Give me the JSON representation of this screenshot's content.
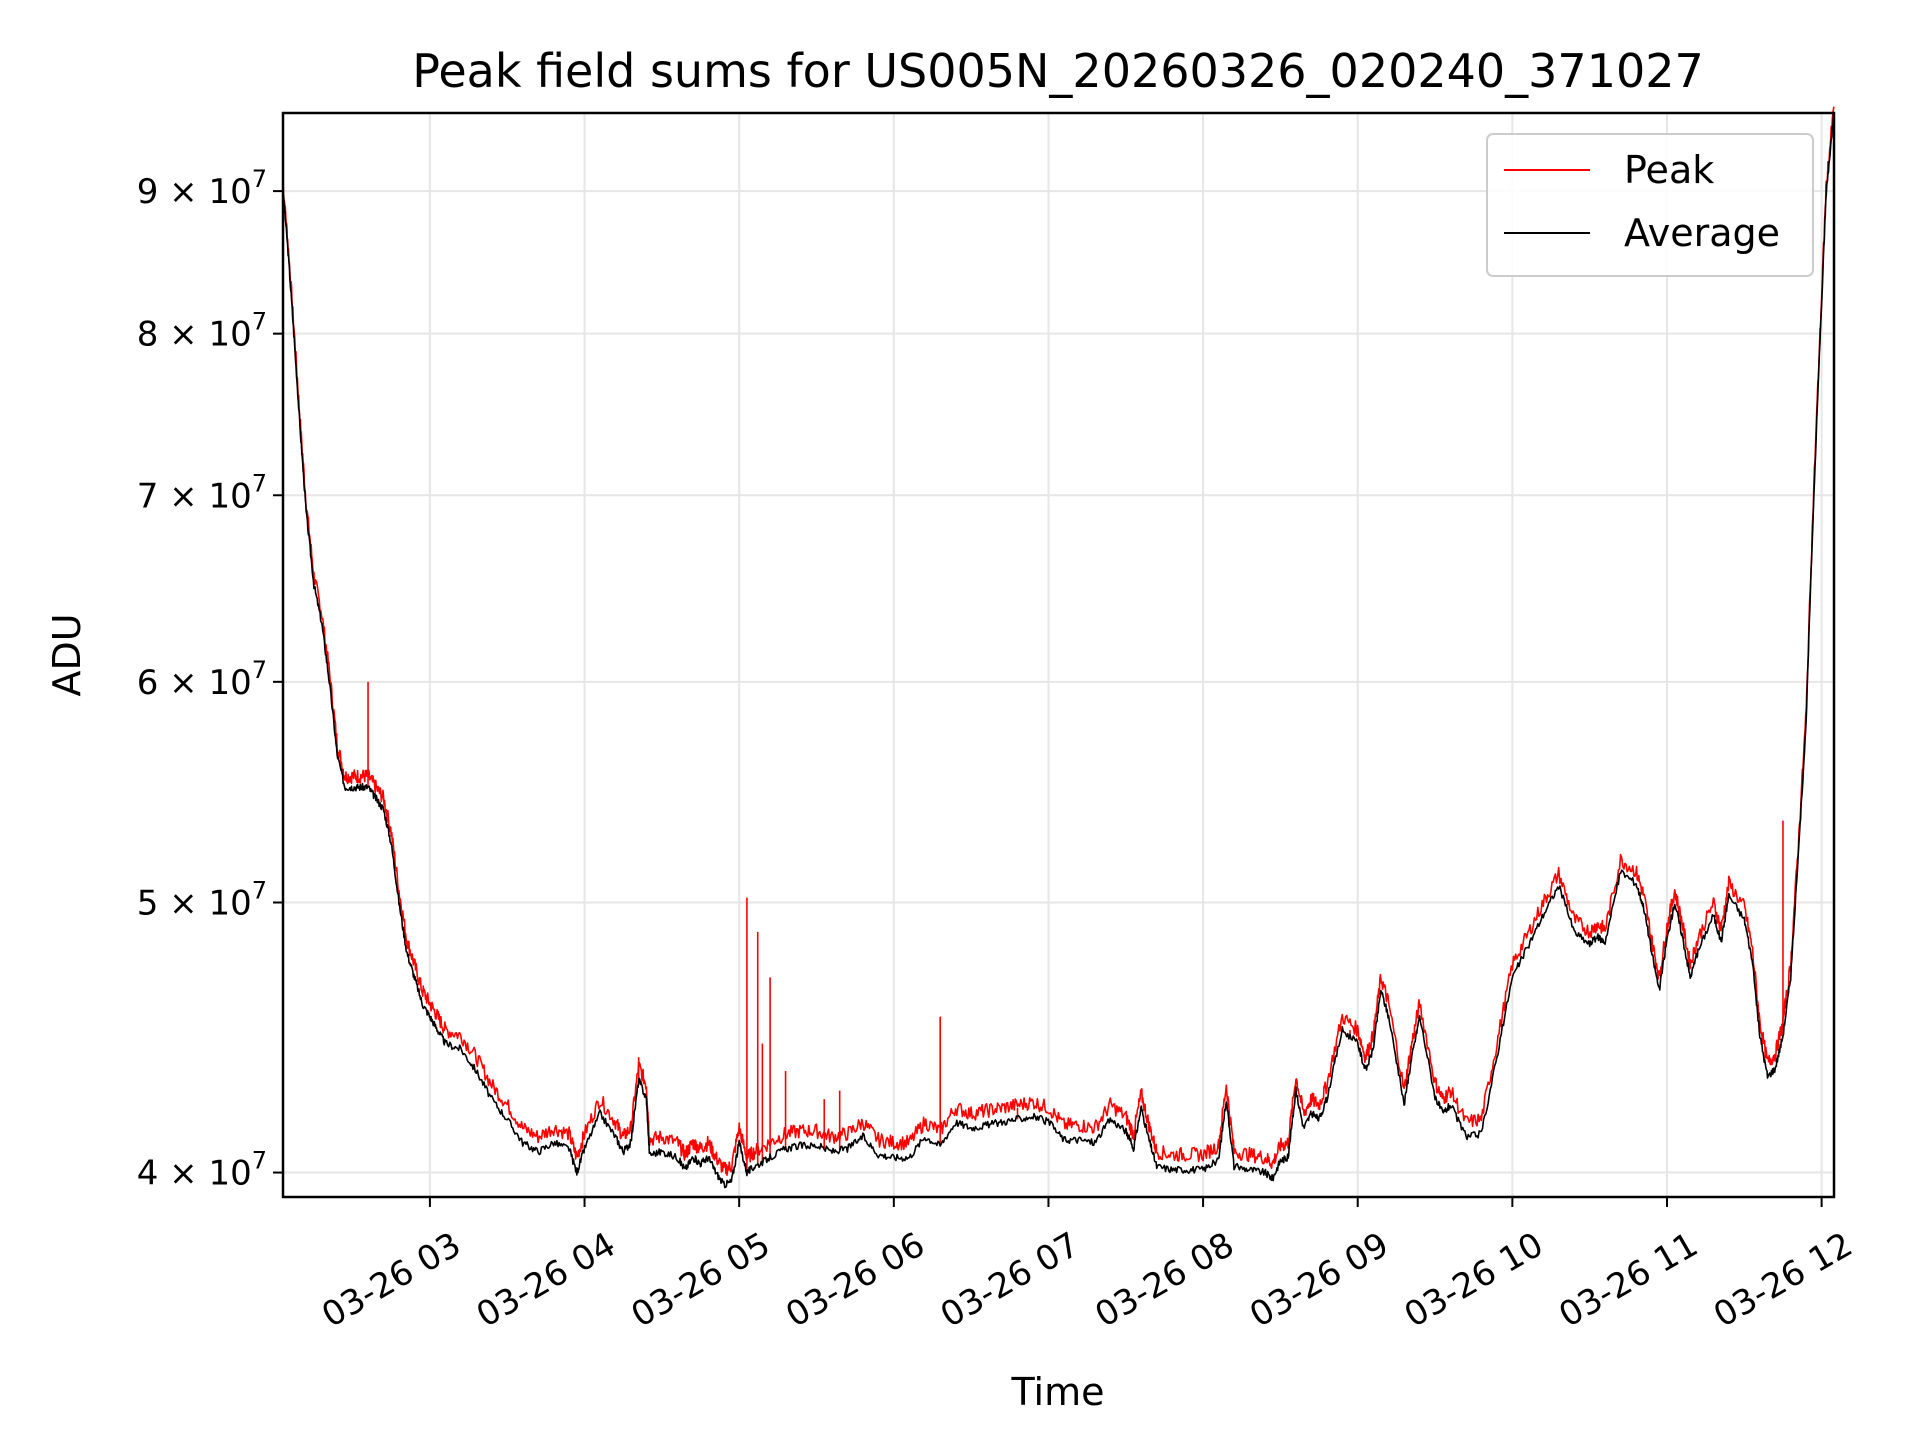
{
  "chart_data": {
    "type": "line",
    "title": "Peak field sums for US005N_20260326_020240_371027",
    "xlabel": "Time",
    "ylabel": "ADU",
    "yscale": "log",
    "xlim_hours": [
      2.05,
      12.08
    ],
    "ylim": [
      39200000,
      96000000
    ],
    "x_ticks": [
      {
        "value": 3,
        "label": "03-26 03"
      },
      {
        "value": 4,
        "label": "03-26 04"
      },
      {
        "value": 5,
        "label": "03-26 05"
      },
      {
        "value": 6,
        "label": "03-26 06"
      },
      {
        "value": 7,
        "label": "03-26 07"
      },
      {
        "value": 8,
        "label": "03-26 08"
      },
      {
        "value": 9,
        "label": "03-26 09"
      },
      {
        "value": 10,
        "label": "03-26 10"
      },
      {
        "value": 11,
        "label": "03-26 11"
      },
      {
        "value": 12,
        "label": "03-26 12"
      }
    ],
    "y_ticks": [
      {
        "value": 40000000,
        "mantissa": "4",
        "exponent": "7"
      },
      {
        "value": 50000000,
        "mantissa": "5",
        "exponent": "7"
      },
      {
        "value": 60000000,
        "mantissa": "6",
        "exponent": "7"
      },
      {
        "value": 70000000,
        "mantissa": "7",
        "exponent": "7"
      },
      {
        "value": 80000000,
        "mantissa": "8",
        "exponent": "7"
      },
      {
        "value": 90000000,
        "mantissa": "9",
        "exponent": "7"
      }
    ],
    "times_label": "× 10",
    "legend_position": "upper-right",
    "series": [
      {
        "name": "Peak",
        "color": "#ff0000",
        "offset": 500000
      },
      {
        "name": "Average",
        "color": "#000000",
        "offset": 0
      }
    ],
    "average_curve": [
      [
        2.05,
        90000000
      ],
      [
        2.08,
        86000000
      ],
      [
        2.12,
        80000000
      ],
      [
        2.16,
        74000000
      ],
      [
        2.2,
        69000000
      ],
      [
        2.25,
        65000000
      ],
      [
        2.3,
        63000000
      ],
      [
        2.35,
        60000000
      ],
      [
        2.4,
        56500000
      ],
      [
        2.45,
        55000000
      ],
      [
        2.5,
        55000000
      ],
      [
        2.55,
        55000000
      ],
      [
        2.6,
        55000000
      ],
      [
        2.65,
        54500000
      ],
      [
        2.7,
        54000000
      ],
      [
        2.75,
        52500000
      ],
      [
        2.8,
        50000000
      ],
      [
        2.85,
        48000000
      ],
      [
        2.9,
        47000000
      ],
      [
        2.95,
        46000000
      ],
      [
        3.0,
        45500000
      ],
      [
        3.05,
        45000000
      ],
      [
        3.1,
        44500000
      ],
      [
        3.2,
        44300000
      ],
      [
        3.3,
        43500000
      ],
      [
        3.4,
        42500000
      ],
      [
        3.5,
        41800000
      ],
      [
        3.6,
        41000000
      ],
      [
        3.7,
        40700000
      ],
      [
        3.8,
        41000000
      ],
      [
        3.9,
        40800000
      ],
      [
        3.95,
        40000000
      ],
      [
        4.0,
        40800000
      ],
      [
        4.1,
        42000000
      ],
      [
        4.2,
        41200000
      ],
      [
        4.25,
        40700000
      ],
      [
        4.3,
        41000000
      ],
      [
        4.35,
        43200000
      ],
      [
        4.4,
        42500000
      ],
      [
        4.42,
        40600000
      ],
      [
        4.5,
        40700000
      ],
      [
        4.6,
        40500000
      ],
      [
        4.65,
        40100000
      ],
      [
        4.7,
        40500000
      ],
      [
        4.75,
        40300000
      ],
      [
        4.8,
        40500000
      ],
      [
        4.85,
        40000000
      ],
      [
        4.9,
        39600000
      ],
      [
        4.95,
        39700000
      ],
      [
        5.0,
        41000000
      ],
      [
        5.05,
        40000000
      ],
      [
        5.1,
        40200000
      ],
      [
        5.2,
        40500000
      ],
      [
        5.3,
        40800000
      ],
      [
        5.4,
        40900000
      ],
      [
        5.5,
        40900000
      ],
      [
        5.6,
        40700000
      ],
      [
        5.7,
        40800000
      ],
      [
        5.8,
        41200000
      ],
      [
        5.9,
        40600000
      ],
      [
        6.0,
        40500000
      ],
      [
        6.1,
        40500000
      ],
      [
        6.2,
        41200000
      ],
      [
        6.3,
        40900000
      ],
      [
        6.4,
        41700000
      ],
      [
        6.5,
        41500000
      ],
      [
        6.6,
        41600000
      ],
      [
        6.7,
        41700000
      ],
      [
        6.8,
        41800000
      ],
      [
        6.9,
        41900000
      ],
      [
        7.0,
        41700000
      ],
      [
        7.1,
        41100000
      ],
      [
        7.2,
        41100000
      ],
      [
        7.3,
        41000000
      ],
      [
        7.4,
        41800000
      ],
      [
        7.5,
        41400000
      ],
      [
        7.55,
        40800000
      ],
      [
        7.6,
        42200000
      ],
      [
        7.65,
        41100000
      ],
      [
        7.7,
        40200000
      ],
      [
        7.8,
        40100000
      ],
      [
        7.9,
        40100000
      ],
      [
        8.0,
        40100000
      ],
      [
        8.1,
        40400000
      ],
      [
        8.15,
        42500000
      ],
      [
        8.2,
        40200000
      ],
      [
        8.3,
        40100000
      ],
      [
        8.4,
        40000000
      ],
      [
        8.45,
        39800000
      ],
      [
        8.5,
        40400000
      ],
      [
        8.55,
        40500000
      ],
      [
        8.6,
        42800000
      ],
      [
        8.65,
        41500000
      ],
      [
        8.7,
        42000000
      ],
      [
        8.75,
        41800000
      ],
      [
        8.8,
        42500000
      ],
      [
        8.9,
        45000000
      ],
      [
        9.0,
        44500000
      ],
      [
        9.05,
        43500000
      ],
      [
        9.1,
        44300000
      ],
      [
        9.15,
        46500000
      ],
      [
        9.2,
        45500000
      ],
      [
        9.3,
        42300000
      ],
      [
        9.35,
        44000000
      ],
      [
        9.4,
        45500000
      ],
      [
        9.5,
        42600000
      ],
      [
        9.55,
        42000000
      ],
      [
        9.6,
        42300000
      ],
      [
        9.7,
        41200000
      ],
      [
        9.8,
        41300000
      ],
      [
        9.9,
        44000000
      ],
      [
        10.0,
        47000000
      ],
      [
        10.1,
        48200000
      ],
      [
        10.2,
        49500000
      ],
      [
        10.3,
        50700000
      ],
      [
        10.4,
        48800000
      ],
      [
        10.5,
        48300000
      ],
      [
        10.55,
        48600000
      ],
      [
        10.6,
        48400000
      ],
      [
        10.7,
        51300000
      ],
      [
        10.8,
        50800000
      ],
      [
        10.85,
        49800000
      ],
      [
        10.9,
        48000000
      ],
      [
        10.95,
        46500000
      ],
      [
        11.0,
        48500000
      ],
      [
        11.05,
        50000000
      ],
      [
        11.1,
        48600000
      ],
      [
        11.15,
        47000000
      ],
      [
        11.2,
        48000000
      ],
      [
        11.3,
        49500000
      ],
      [
        11.35,
        48400000
      ],
      [
        11.4,
        50300000
      ],
      [
        11.5,
        49300000
      ],
      [
        11.55,
        47700000
      ],
      [
        11.6,
        44800000
      ],
      [
        11.65,
        43300000
      ],
      [
        11.7,
        43600000
      ],
      [
        11.75,
        44800000
      ],
      [
        11.8,
        47000000
      ],
      [
        11.85,
        52000000
      ],
      [
        11.9,
        58000000
      ],
      [
        11.95,
        70000000
      ],
      [
        12.0,
        82000000
      ],
      [
        12.03,
        90000000
      ],
      [
        12.08,
        96000000
      ]
    ],
    "peak_spikes": [
      [
        2.6,
        60000000
      ],
      [
        4.35,
        44000000
      ],
      [
        5.05,
        50200000
      ],
      [
        5.12,
        48800000
      ],
      [
        5.15,
        44500000
      ],
      [
        5.2,
        47000000
      ],
      [
        5.3,
        43500000
      ],
      [
        5.55,
        42500000
      ],
      [
        5.65,
        42800000
      ],
      [
        6.3,
        45500000
      ],
      [
        6.8,
        42200000
      ],
      [
        8.95,
        45000000
      ],
      [
        11.75,
        53500000
      ]
    ]
  }
}
